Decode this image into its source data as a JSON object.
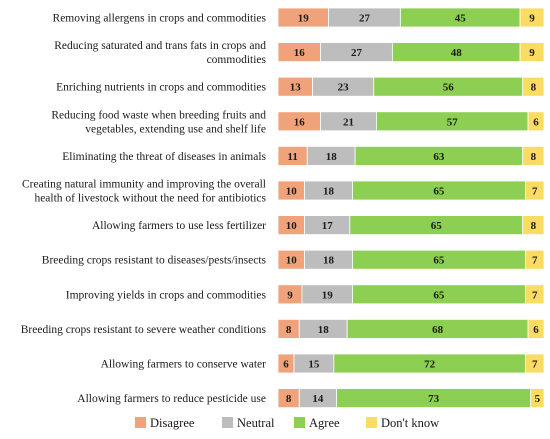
{
  "chart_data": {
    "type": "bar",
    "orientation": "horizontal",
    "stacked": true,
    "percent_stacked": true,
    "title": "",
    "xlabel": "",
    "ylabel": "",
    "xlim": [
      0,
      100
    ],
    "grid": false,
    "legend_position": "bottom",
    "categories": [
      [
        "Removing allergens in crops and commodities"
      ],
      [
        "Reducing saturated and trans fats in crops and",
        "commodities"
      ],
      [
        "Enriching nutrients in crops and commodities"
      ],
      [
        "Reducing food waste when breeding fruits and",
        "vegetables, extending use and shelf life"
      ],
      [
        "Eliminating the threat of diseases in animals"
      ],
      [
        "Creating natural immunity and improving the overall",
        "health of livestock without the need for antibiotics"
      ],
      [
        "Allowing farmers to use less fertilizer"
      ],
      [
        "Breeding crops resistant to diseases/pests/insects"
      ],
      [
        "Improving yields in crops and commodities"
      ],
      [
        "Breeding crops resistant to severe weather conditions"
      ],
      [
        "Allowing farmers to conserve water"
      ],
      [
        "Allowing farmers to reduce pesticide use"
      ]
    ],
    "series": [
      {
        "name": "Disagree",
        "color": "#f0a37a",
        "values": [
          19,
          16,
          13,
          16,
          11,
          10,
          10,
          10,
          9,
          8,
          6,
          8
        ]
      },
      {
        "name": "Neutral",
        "color": "#bdbdbd",
        "values": [
          27,
          27,
          23,
          21,
          18,
          18,
          17,
          18,
          19,
          18,
          15,
          14
        ]
      },
      {
        "name": "Agree",
        "color": "#8dcf52",
        "values": [
          45,
          48,
          56,
          57,
          63,
          65,
          65,
          65,
          65,
          68,
          72,
          73
        ]
      },
      {
        "name": "Don't know",
        "color": "#fadc63",
        "values": [
          9,
          9,
          8,
          6,
          8,
          7,
          8,
          7,
          7,
          6,
          7,
          5
        ]
      }
    ]
  }
}
